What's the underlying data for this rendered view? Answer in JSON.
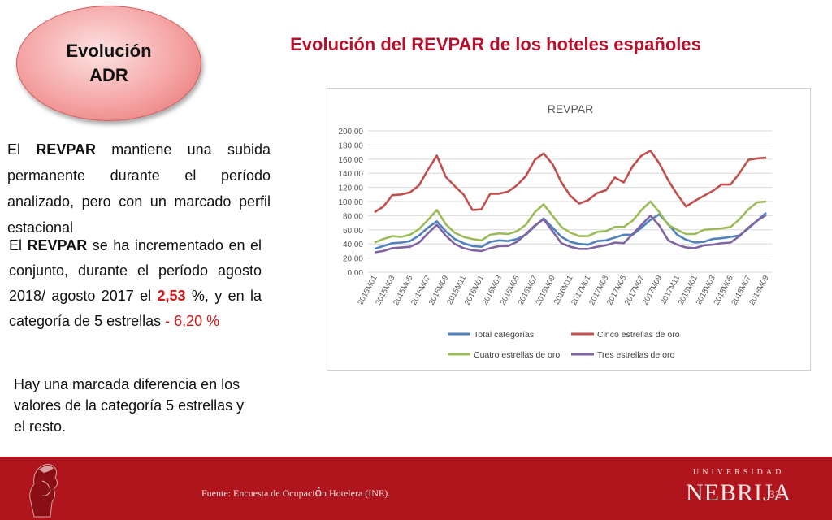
{
  "badge": {
    "line1": "Evolución",
    "line2": "ADR"
  },
  "title": "Evolución del REVPAR de los hoteles españoles",
  "paragraphs": {
    "p1_pre": "El ",
    "p1_bold": "REVPAR",
    "p1_post": " mantiene una subida permanente durante el período analizado, pero con un marcado perfil estacional",
    "p2_pre": "El ",
    "p2_bold": "REVPAR",
    "p2_mid": " se ha incrementado en el conjunto, durante el período agosto 2018/ agosto 2017 el ",
    "p2_val1": "2,53",
    "p2_mid2": " %, y en la  categoría de 5 estrellas  ",
    "p2_val2": "- 6,20 %",
    "p3": "Hay una marcada diferencia en los valores  de la categoría 5 estrellas y el resto."
  },
  "footer": {
    "source_pre": "Fuente: Encuesta de Ocupaci",
    "source_o": "ó",
    "source_post": "n Hotelera (INE).",
    "university_word": "UNIVERSIDAD",
    "university_name": "NEBRIJA",
    "page_number": "32"
  },
  "colors": {
    "title": "#b8102a",
    "footer": "#b0141c",
    "total": "#4f81bd",
    "cinco": "#c0504d",
    "cuatro": "#9bbb59",
    "tres": "#8064a2"
  },
  "chart_data": {
    "type": "line",
    "title": "REVPAR",
    "ylim": [
      0,
      200
    ],
    "yticks": [
      "0,00",
      "20,00",
      "40,00",
      "60,00",
      "80,00",
      "100,00",
      "120,00",
      "140,00",
      "160,00",
      "180,00",
      "200,00"
    ],
    "x_tick_labels": [
      "2015M01",
      "2015M03",
      "2015M05",
      "2015M07",
      "2015M09",
      "2015M11",
      "2016M01",
      "2016M03",
      "2016M05",
      "2016M07",
      "2016M09",
      "2016M11",
      "2017M01",
      "2017M03",
      "2017M05",
      "2017M07",
      "2017M09",
      "2017M11",
      "2018M01",
      "2018M03",
      "2018M05",
      "2018M07",
      "2018M09"
    ],
    "grid": true,
    "legend_position": "bottom",
    "series": [
      {
        "name": "Total categorías",
        "color": "#4f81bd",
        "values": [
          33,
          37,
          41,
          42,
          44,
          52,
          63,
          72,
          58,
          47,
          41,
          37,
          36,
          43,
          45,
          44,
          47,
          53,
          65,
          76,
          63,
          50,
          43,
          40,
          39,
          44,
          45,
          49,
          53,
          53,
          63,
          74,
          82,
          68,
          53,
          46,
          42,
          43,
          47,
          48,
          50,
          52,
          62,
          73,
          84
        ]
      },
      {
        "name": "Cinco estrellas de oro",
        "color": "#c0504d",
        "values": [
          85,
          93,
          109,
          110,
          113,
          123,
          145,
          165,
          135,
          122,
          110,
          88,
          89,
          111,
          111,
          114,
          123,
          136,
          159,
          168,
          153,
          127,
          108,
          97,
          102,
          112,
          116,
          134,
          127,
          150,
          165,
          172,
          154,
          130,
          110,
          93,
          101,
          108,
          115,
          124,
          124,
          140,
          159,
          161,
          162
        ]
      },
      {
        "name": "Cuatro estrellas de oro",
        "color": "#9bbb59",
        "values": [
          42,
          47,
          51,
          50,
          53,
          61,
          74,
          88,
          68,
          56,
          50,
          47,
          45,
          53,
          55,
          54,
          58,
          67,
          85,
          96,
          80,
          64,
          56,
          51,
          51,
          57,
          58,
          64,
          64,
          73,
          88,
          100,
          85,
          67,
          60,
          54,
          54,
          60,
          61,
          62,
          64,
          75,
          89,
          99,
          100
        ]
      },
      {
        "name": "Tres estrellas de oro",
        "color": "#8064a2",
        "values": [
          28,
          30,
          34,
          35,
          36,
          42,
          55,
          67,
          52,
          40,
          34,
          31,
          30,
          34,
          37,
          37,
          43,
          54,
          66,
          75,
          58,
          41,
          36,
          33,
          33,
          36,
          38,
          42,
          41,
          54,
          67,
          80,
          66,
          45,
          39,
          35,
          34,
          38,
          39,
          41,
          42,
          51,
          63,
          73,
          81
        ]
      }
    ]
  }
}
